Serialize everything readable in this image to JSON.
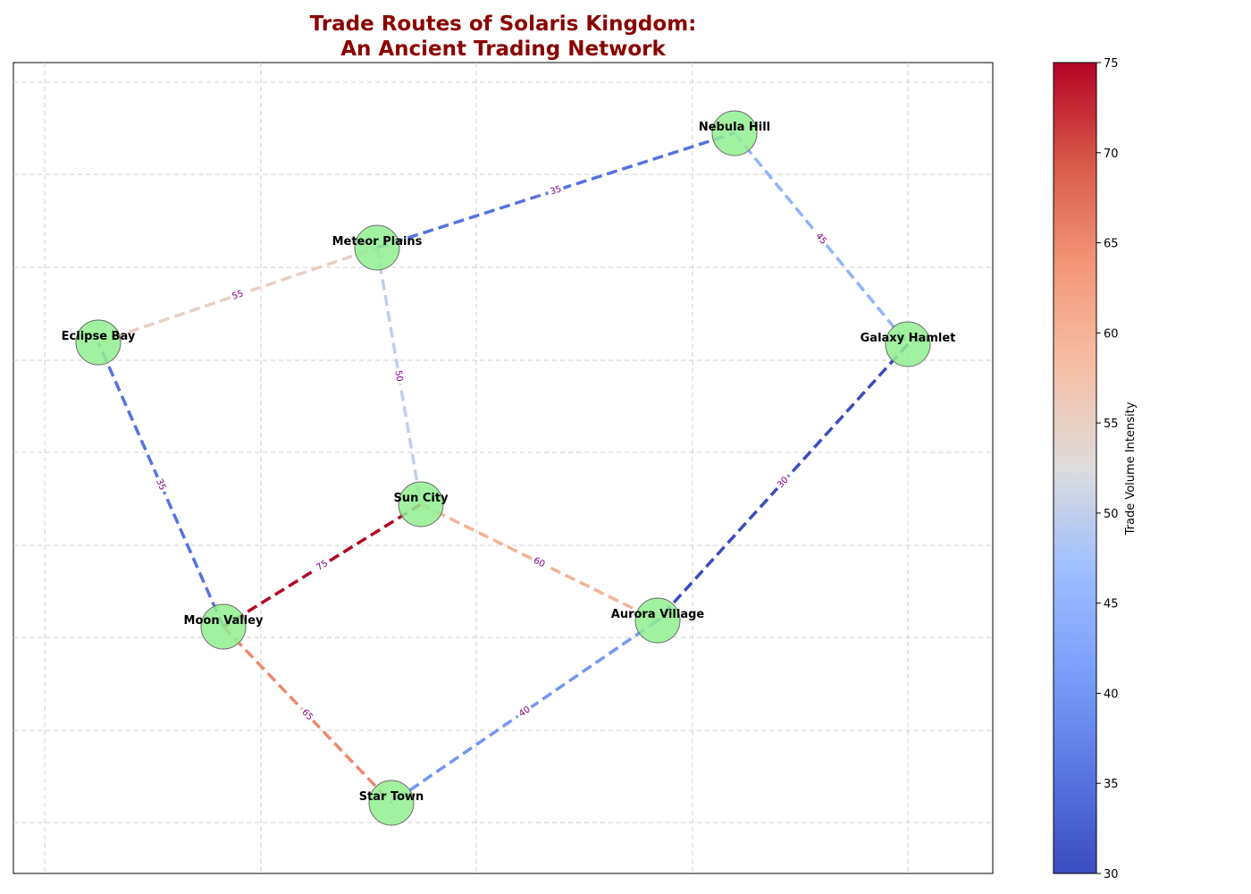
{
  "title_line1": "Trade Routes of Solaris Kingdom:",
  "title_line2": "An Ancient Trading Network",
  "colorbar": {
    "label": "Trade Volume Intensity",
    "ticks": [
      "30",
      "35",
      "40",
      "45",
      "50",
      "55",
      "60",
      "65",
      "70",
      "75"
    ]
  },
  "nodes": [
    {
      "id": "sun",
      "name": "Sun City"
    },
    {
      "id": "moon",
      "name": "Moon Valley"
    },
    {
      "id": "star",
      "name": "Star Town"
    },
    {
      "id": "eclipse",
      "name": "Eclipse Bay"
    },
    {
      "id": "meteor",
      "name": "Meteor Plains"
    },
    {
      "id": "nebula",
      "name": "Nebula Hill"
    },
    {
      "id": "galaxy",
      "name": "Galaxy Hamlet"
    },
    {
      "id": "aurora",
      "name": "Aurora Village"
    }
  ],
  "edges": [
    {
      "source": "sun",
      "target": "moon",
      "label": "75",
      "value": 75
    },
    {
      "source": "sun",
      "target": "aurora",
      "label": "60",
      "value": 60
    },
    {
      "source": "moon",
      "target": "star",
      "label": "65",
      "value": 65
    },
    {
      "source": "moon",
      "target": "eclipse",
      "label": "35",
      "value": 35
    },
    {
      "source": "eclipse",
      "target": "meteor",
      "label": "55",
      "value": 55
    },
    {
      "source": "meteor",
      "target": "sun",
      "label": "50",
      "value": 50
    },
    {
      "source": "meteor",
      "target": "nebula",
      "label": "35",
      "value": 35
    },
    {
      "source": "nebula",
      "target": "galaxy",
      "label": "45",
      "value": 45
    },
    {
      "source": "galaxy",
      "target": "aurora",
      "label": "30",
      "value": 30
    },
    {
      "source": "aurora",
      "target": "star",
      "label": "40",
      "value": 40
    }
  ],
  "colors": {
    "title": "#8b0000",
    "node_fill": "#90ee90",
    "node_stroke": "#696969",
    "edge_label": "#800080",
    "scale_low": "#3b4cc0",
    "scale_mid": "#dddddd",
    "scale_high": "#b40426"
  },
  "scale": {
    "min": 30,
    "max": 75
  }
}
